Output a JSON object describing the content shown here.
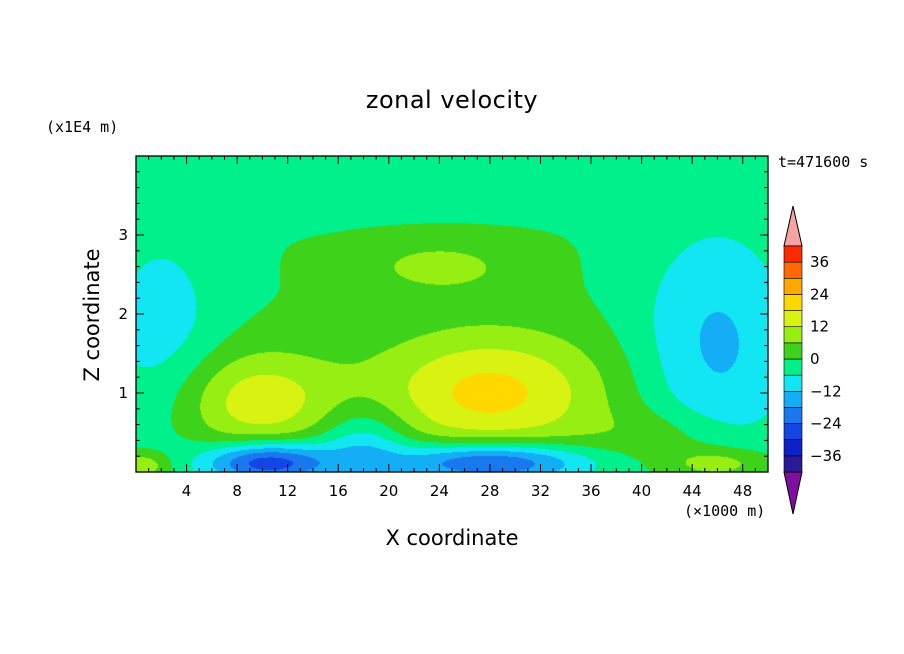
{
  "chart_data": {
    "type": "heatmap",
    "title": "zonal velocity",
    "xlabel": "X coordinate",
    "ylabel": "Z coordinate",
    "x_unit_label": "(×1000 m)",
    "y_unit_label": "(x1E4 m)",
    "time_label": "t=471600 s",
    "xlim": [
      0,
      50
    ],
    "ylim": [
      0,
      4
    ],
    "x_ticks": [
      4,
      8,
      12,
      16,
      20,
      24,
      28,
      32,
      36,
      40,
      44,
      48
    ],
    "y_ticks": [
      1,
      2,
      3
    ],
    "colorbar": {
      "ticks": [
        36,
        24,
        12,
        0,
        -12,
        -24,
        -36
      ],
      "levels": [
        -42,
        -36,
        -30,
        -24,
        -18,
        -12,
        -6,
        0,
        6,
        12,
        18,
        24,
        30,
        36,
        42
      ],
      "colors": [
        "#7f0fa0",
        "#2a1a9a",
        "#1020c8",
        "#1446e6",
        "#1a78ee",
        "#13aef5",
        "#12e6f2",
        "#00f08c",
        "#3fd21a",
        "#97ee13",
        "#d8f312",
        "#ffd800",
        "#ffa800",
        "#ff6a00",
        "#ff2a00",
        "#f5a3a3"
      ],
      "extend": "both"
    },
    "features": [
      {
        "x": 9.5,
        "z": 0.9,
        "value": 16,
        "sx": 4.5,
        "sz": 0.45
      },
      {
        "x": 28,
        "z": 1.0,
        "value": 20,
        "sx": 6.5,
        "sz": 0.55
      },
      {
        "x": 24,
        "z": 2.6,
        "value": 8,
        "sx": 4.5,
        "sz": 0.25
      },
      {
        "x": 10.5,
        "z": 0.12,
        "value": -30,
        "sx": 3.5,
        "sz": 0.18
      },
      {
        "x": 28,
        "z": 0.12,
        "value": -28,
        "sx": 5.5,
        "sz": 0.18
      },
      {
        "x": 18,
        "z": 0.35,
        "value": -12,
        "sx": 2.5,
        "sz": 0.35
      },
      {
        "x": 2,
        "z": 1.8,
        "value": -9,
        "sx": 3.5,
        "sz": 1.0
      },
      {
        "x": 46,
        "z": 1.6,
        "value": -13,
        "sx": 4.5,
        "sz": 1.1
      },
      {
        "x": 20,
        "z": 3.7,
        "value": -4,
        "sx": 14,
        "sz": 0.3
      },
      {
        "x": 46,
        "z": 0.1,
        "value": 12,
        "sx": 3,
        "sz": 0.15
      },
      {
        "x": 0.5,
        "z": 0.08,
        "value": 12,
        "sx": 1.5,
        "sz": 0.12
      },
      {
        "x": 42,
        "z": 0.45,
        "value": 6,
        "sx": 4,
        "sz": 0.25
      }
    ],
    "grid": false
  }
}
